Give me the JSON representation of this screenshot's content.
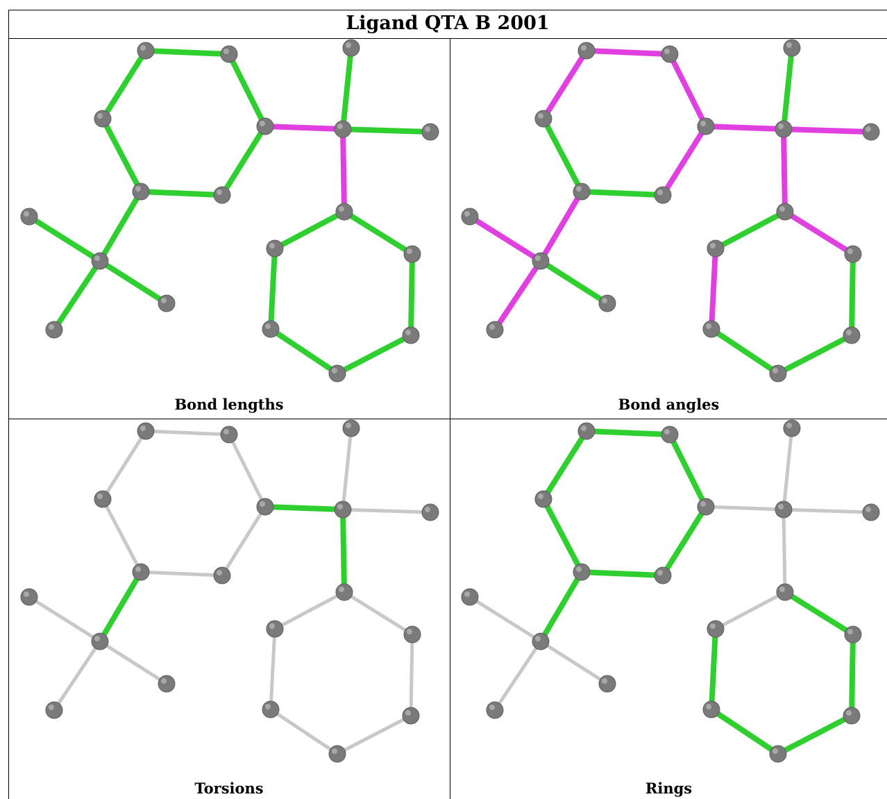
{
  "title": "Ligand QTA B 2001",
  "colors": {
    "green": "#2ecf2e",
    "magenta": "#e040e0",
    "grey": "#c8c8c8",
    "atom": "#7a7a7a"
  },
  "panels": [
    {
      "caption": "Bond lengths",
      "bond_colors": [
        "green",
        "green",
        "green",
        "green",
        "green",
        "green",
        "magenta",
        "green",
        "green",
        "magenta",
        "green",
        "green",
        "green",
        "green",
        "green",
        "green",
        "green",
        "green",
        "green",
        "green"
      ]
    },
    {
      "caption": "Bond angles",
      "bond_colors": [
        "magenta",
        "magenta",
        "magenta",
        "green",
        "green",
        "magenta",
        "magenta",
        "green",
        "magenta",
        "magenta",
        "magenta",
        "green",
        "magenta",
        "green",
        "magenta",
        "magenta",
        "magenta",
        "green",
        "green",
        "green"
      ]
    },
    {
      "caption": "Torsions",
      "bond_colors": [
        "grey",
        "grey",
        "grey",
        "grey",
        "grey",
        "grey",
        "green",
        "grey",
        "grey",
        "green",
        "grey",
        "grey",
        "grey",
        "grey",
        "grey",
        "green",
        "grey",
        "grey",
        "grey",
        "grey"
      ]
    },
    {
      "caption": "Rings",
      "bond_colors": [
        "green",
        "green",
        "green",
        "green",
        "green",
        "green",
        "grey",
        "grey",
        "grey",
        "grey",
        "grey",
        "grey",
        "grey",
        "grey",
        "green",
        "green",
        "green",
        "green",
        "green",
        "green"
      ]
    }
  ]
}
